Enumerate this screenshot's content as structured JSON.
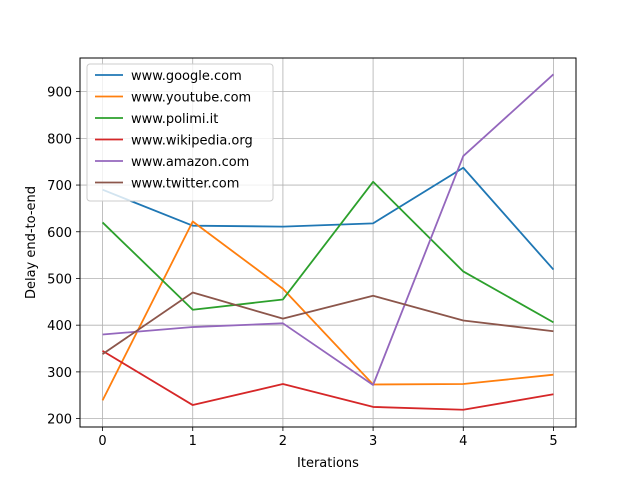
{
  "chart_data": {
    "type": "line",
    "title": "",
    "xlabel": "Iterations",
    "ylabel": "Delay end-to-end",
    "x": [
      0,
      1,
      2,
      3,
      4,
      5
    ],
    "xlim": [
      -0.25,
      5.25
    ],
    "ylim": [
      182,
      972
    ],
    "xticks": [
      0,
      1,
      2,
      3,
      4,
      5
    ],
    "yticks": [
      200,
      300,
      400,
      500,
      600,
      700,
      800,
      900
    ],
    "grid": true,
    "legend_position": "top-left",
    "series": [
      {
        "name": "www.google.com",
        "color": "#1f77b4",
        "values": [
          690,
          613,
          611,
          618,
          737,
          519
        ]
      },
      {
        "name": "www.youtube.com",
        "color": "#ff7f0e",
        "values": [
          239,
          622,
          478,
          273,
          274,
          294
        ]
      },
      {
        "name": "www.polimi.it",
        "color": "#2ca02c",
        "values": [
          620,
          433,
          455,
          707,
          515,
          406
        ]
      },
      {
        "name": "www.wikipedia.org",
        "color": "#d62728",
        "values": [
          345,
          229,
          274,
          225,
          219,
          252
        ]
      },
      {
        "name": "www.amazon.com",
        "color": "#9467bd",
        "values": [
          380,
          396,
          404,
          272,
          762,
          937
        ]
      },
      {
        "name": "www.twitter.com",
        "color": "#8c564b",
        "values": [
          338,
          470,
          414,
          463,
          410,
          387
        ]
      }
    ]
  }
}
